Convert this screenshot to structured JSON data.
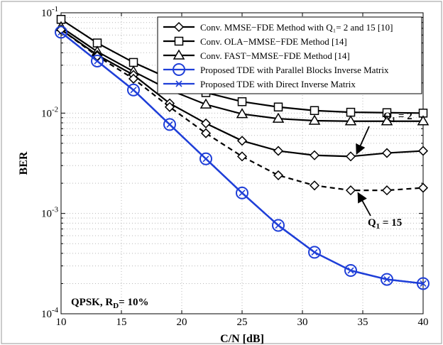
{
  "chart_data": {
    "type": "line",
    "xlabel": "C/N [dB]",
    "ylabel": "BER",
    "xlim": [
      10,
      40
    ],
    "ylim": [
      0.0001,
      0.1
    ],
    "yscale": "log",
    "grid": true,
    "x_ticks": [
      "10",
      "15",
      "20",
      "25",
      "30",
      "35",
      "40"
    ],
    "y_ticks": [
      {
        "base": "10",
        "exp": "-4"
      },
      {
        "base": "10",
        "exp": "-3"
      },
      {
        "base": "10",
        "exp": "-2"
      },
      {
        "base": "10",
        "exp": "-1"
      }
    ],
    "legend_position": "top-right",
    "x": [
      10,
      13,
      16,
      19,
      22,
      25,
      28,
      31,
      34,
      37,
      40
    ],
    "series": [
      {
        "name": "Conv. MMSE−FDE Method with Q₁= 2 [10]",
        "legend_label": "Conv. MMSE−FDE Method with Q₁= 2 and 15 [10]",
        "in_legend": true,
        "marker": "diamond",
        "color": "#000000",
        "dash": "solid",
        "values": [
          0.068,
          0.038,
          0.024,
          0.0125,
          0.0079,
          0.0053,
          0.0042,
          0.0038,
          0.0037,
          0.004,
          0.0042
        ]
      },
      {
        "name": "Conv. MMSE−FDE Method with Q₁= 15 [10]",
        "in_legend": false,
        "marker": "diamond",
        "color": "#000000",
        "dash": "dashed",
        "values": [
          0.068,
          0.037,
          0.022,
          0.0115,
          0.0063,
          0.0037,
          0.0024,
          0.0019,
          0.0017,
          0.0017,
          0.0018
        ]
      },
      {
        "name": "Conv. OLA−MMSE−FDE Method [14]",
        "in_legend": true,
        "marker": "square",
        "color": "#000000",
        "dash": "solid",
        "values": [
          0.086,
          0.05,
          0.032,
          0.022,
          0.016,
          0.013,
          0.0115,
          0.0106,
          0.0102,
          0.0101,
          0.01
        ]
      },
      {
        "name": "Conv. FAST−MMSE−FDE Method [14]",
        "in_legend": true,
        "marker": "triangle",
        "color": "#000000",
        "dash": "solid",
        "values": [
          0.072,
          0.041,
          0.026,
          0.017,
          0.0122,
          0.0098,
          0.0088,
          0.0084,
          0.0083,
          0.0083,
          0.0083
        ]
      },
      {
        "name": "Proposed TDE with Parallel Blocks Inverse Matrix",
        "in_legend": true,
        "marker": "circle",
        "color": "#1f3fd8",
        "dash": "solid",
        "values": [
          0.064,
          0.033,
          0.017,
          0.0077,
          0.0035,
          0.0016,
          0.00076,
          0.00041,
          0.00027,
          0.00022,
          0.0002
        ]
      },
      {
        "name": "Proposed TDE with Direct Inverse Matrix",
        "in_legend": true,
        "marker": "x",
        "color": "#1f3fd8",
        "dash": "solid",
        "values": [
          0.064,
          0.033,
          0.017,
          0.0077,
          0.0035,
          0.0016,
          0.00076,
          0.00041,
          0.00027,
          0.00022,
          0.0002
        ]
      }
    ],
    "annotations": [
      {
        "base": "Q",
        "sub": "1",
        "rest": " = 2",
        "x": 34.5,
        "y": 0.0037
      },
      {
        "base": "Q",
        "sub": "1",
        "rest": " = 15",
        "x": 34.5,
        "y": 0.0017
      }
    ],
    "inset_label": {
      "prefix": "QPSK, R",
      "sub": "D",
      "suffix": "= 10%"
    }
  }
}
